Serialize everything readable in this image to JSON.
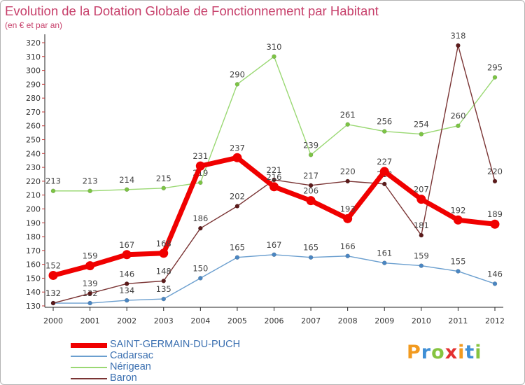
{
  "chart_data": {
    "type": "line",
    "title": "Evolution de la Dotation Globale de Fonctionnement par Habitant",
    "subtitle": "(en € et par an)",
    "xlabel": "",
    "ylabel": "",
    "ylim": [
      130,
      320
    ],
    "ytick_step": 10,
    "grid": false,
    "legend_position": "bottom-left",
    "x": [
      "2000",
      "2001",
      "2002",
      "2003",
      "2004",
      "2005",
      "2006",
      "2007",
      "2008",
      "2009",
      "2010",
      "2011",
      "2012"
    ],
    "series": [
      {
        "name": "Cadarsac",
        "color": "#6b9fcf",
        "marker": "#4a86c2",
        "values": [
          132,
          132,
          134,
          135,
          150,
          165,
          167,
          165,
          166,
          161,
          159,
          155,
          146
        ]
      },
      {
        "name": "Nérigean",
        "color": "#9ad873",
        "marker": "#7cc444",
        "values": [
          213,
          213,
          214,
          215,
          219,
          290,
          310,
          239,
          261,
          256,
          254,
          260,
          295
        ]
      },
      {
        "name": "Baron",
        "color": "#7a3434",
        "marker": "#5c1a1a",
        "values": [
          132,
          139,
          146,
          148,
          186,
          202,
          221,
          217,
          220,
          218,
          181,
          318,
          220
        ]
      },
      {
        "name": "SAINT-GERMAIN-DU-PUCH",
        "color": "#f00000",
        "marker": "#f00000",
        "values": [
          152,
          159,
          167,
          168,
          231,
          237,
          216,
          206,
          193,
          227,
          207,
          192,
          189
        ]
      }
    ]
  },
  "legend": [
    {
      "name": "SAINT-GERMAIN-DU-PUCH",
      "color": "#f00000",
      "text_color": "#3a6fb0",
      "thickness": 7
    },
    {
      "name": "Cadarsac",
      "color": "#6b9fcf",
      "text_color": "#3a6fb0",
      "thickness": 2
    },
    {
      "name": "Nérigean",
      "color": "#9ad873",
      "text_color": "#3a6fb0",
      "thickness": 2
    },
    {
      "name": "Baron",
      "color": "#7a3434",
      "text_color": "#3a6fb0",
      "thickness": 2
    }
  ],
  "logo": {
    "letters": [
      "P",
      "r",
      "o",
      "x",
      "i",
      "t",
      "i"
    ],
    "colors": [
      "#f29a1f",
      "#3f8fd6",
      "#86c440",
      "#e33030",
      "#f29a1f",
      "#3f8fd6",
      "#86c440"
    ]
  }
}
